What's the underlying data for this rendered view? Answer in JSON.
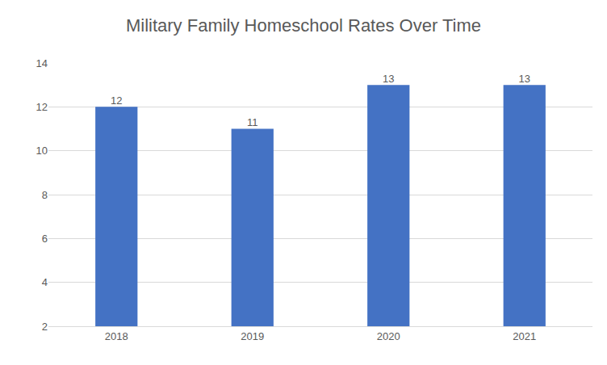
{
  "chart_data": {
    "type": "bar",
    "title": "Military Family Homeschool Rates Over Time",
    "categories": [
      "2018",
      "2019",
      "2020",
      "2021"
    ],
    "values": [
      12,
      11,
      13,
      13
    ],
    "color": "#4472c4",
    "ylim": [
      2,
      14
    ],
    "yticks": [
      2,
      4,
      6,
      8,
      10,
      12,
      14
    ],
    "grid": true,
    "data_labels": true
  }
}
